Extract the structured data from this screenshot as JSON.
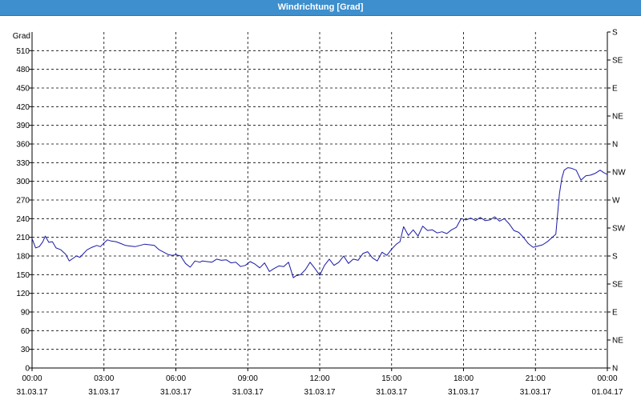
{
  "window": {
    "title": "Windrichtung [Grad]"
  },
  "chart_data": {
    "type": "line",
    "title": "Windrichtung [Grad]",
    "ylabel": "Grad",
    "ylim": [
      0,
      540
    ],
    "y_ticks": [
      0,
      30,
      60,
      90,
      120,
      150,
      180,
      210,
      240,
      270,
      300,
      330,
      360,
      390,
      420,
      450,
      480,
      510
    ],
    "right_axis_labels": [
      "N",
      "NE",
      "E",
      "SE",
      "S",
      "SW",
      "W",
      "NW",
      "N",
      "NE",
      "E",
      "SE",
      "S"
    ],
    "right_axis_values": [
      0,
      45,
      90,
      135,
      180,
      225,
      270,
      315,
      360,
      405,
      450,
      495,
      540
    ],
    "x_tick_times": [
      "00:00",
      "03:00",
      "06:00",
      "09:00",
      "12:00",
      "15:00",
      "18:00",
      "21:00",
      "00:00"
    ],
    "x_tick_dates": [
      "31.03.17",
      "31.03.17",
      "31.03.17",
      "31.03.17",
      "31.03.17",
      "31.03.17",
      "31.03.17",
      "31.03.17",
      "01.04.17"
    ],
    "xlim_hours": [
      0,
      24
    ],
    "grid": true,
    "line_color": "#1a1aa6",
    "series": [
      {
        "x": [
          0,
          0.15,
          0.3,
          0.45,
          0.55,
          0.7,
          0.85,
          1.0,
          1.2,
          1.4,
          1.55,
          1.7,
          1.85,
          2.0,
          2.15,
          2.3,
          2.5,
          2.7,
          2.85,
          3.0,
          3.15,
          3.3,
          3.5,
          3.7,
          3.9,
          4.1,
          4.3,
          4.5,
          4.7,
          4.9,
          5.1,
          5.3,
          5.5,
          5.7,
          5.85,
          6.0,
          6.2,
          6.4,
          6.6,
          6.8,
          7.0,
          7.1,
          7.3,
          7.5,
          7.7,
          7.9,
          8.1,
          8.3,
          8.5,
          8.7,
          8.9,
          9.1,
          9.3,
          9.5,
          9.7,
          9.9,
          10.1,
          10.3,
          10.5,
          10.7,
          10.9,
          11.0,
          11.2,
          11.4,
          11.6,
          11.8,
          12.0,
          12.2,
          12.4,
          12.6,
          12.8,
          13.0,
          13.2,
          13.4,
          13.6,
          13.8,
          14.0,
          14.2,
          14.4,
          14.6,
          14.8,
          15.0,
          15.2,
          15.35,
          15.5,
          15.7,
          15.9,
          16.1,
          16.3,
          16.5,
          16.7,
          16.9,
          17.1,
          17.3,
          17.5,
          17.7,
          17.9,
          18.1,
          18.3,
          18.5,
          18.7,
          18.9,
          19.1,
          19.3,
          19.5,
          19.7,
          19.9,
          20.1,
          20.3,
          20.5,
          20.7,
          20.9,
          21.1,
          21.3,
          21.5,
          21.7,
          21.85,
          22.0,
          22.1,
          22.2,
          22.35,
          22.5,
          22.7,
          22.9,
          23.1,
          23.3,
          23.5,
          23.7,
          23.85,
          24.0
        ],
        "y": [
          208,
          193,
          195,
          203,
          212,
          202,
          203,
          193,
          190,
          183,
          172,
          176,
          180,
          178,
          184,
          190,
          194,
          197,
          195,
          201,
          206,
          204,
          203,
          200,
          197,
          196,
          195,
          197,
          199,
          198,
          197,
          190,
          186,
          182,
          181,
          182,
          180,
          168,
          162,
          172,
          170,
          172,
          171,
          170,
          175,
          173,
          174,
          169,
          170,
          163,
          165,
          171,
          167,
          161,
          169,
          155,
          160,
          164,
          163,
          170,
          145,
          148,
          150,
          158,
          170,
          160,
          149,
          165,
          175,
          165,
          170,
          180,
          168,
          175,
          173,
          184,
          187,
          177,
          172,
          186,
          181,
          191,
          199,
          203,
          227,
          213,
          222,
          212,
          228,
          221,
          222,
          217,
          219,
          216,
          222,
          226,
          240,
          238,
          241,
          237,
          242,
          237,
          238,
          243,
          236,
          240,
          232,
          221,
          218,
          210,
          200,
          194,
          196,
          198,
          203,
          210,
          215,
          280,
          305,
          318,
          322,
          321,
          318,
          302,
          309,
          310,
          313,
          318,
          314,
          311
        ]
      }
    ]
  }
}
